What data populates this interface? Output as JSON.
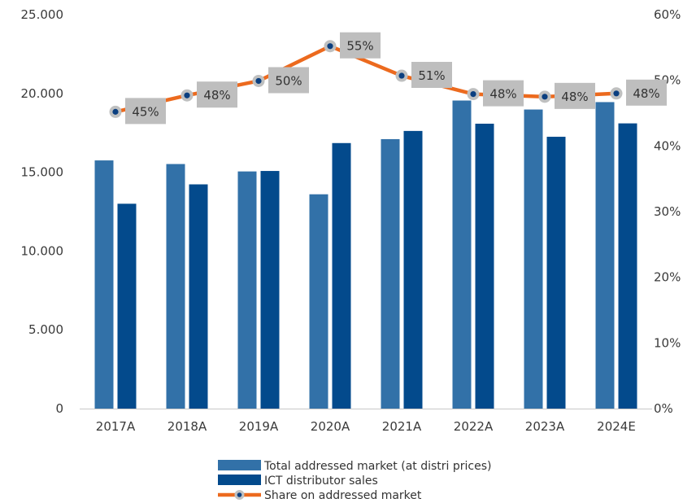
{
  "chart_data": {
    "type": "bar",
    "categories": [
      "2017A",
      "2018A",
      "2019A",
      "2020A",
      "2021A",
      "2022A",
      "2023A",
      "2024E"
    ],
    "series": [
      {
        "name": "Total addressed market (at distri prices)",
        "type": "bar",
        "axis": "left",
        "color": "#3271a8",
        "values": [
          15750,
          15520,
          15050,
          13600,
          17100,
          19550,
          18980,
          19450
        ]
      },
      {
        "name": "ICT distributor sales",
        "type": "bar",
        "axis": "left",
        "color": "#034a8c",
        "values": [
          13000,
          14230,
          15080,
          16850,
          17620,
          18080,
          17250,
          18100
        ]
      },
      {
        "name": "Share on addressed market",
        "type": "line",
        "axis": "right",
        "color": "#ec6a1e",
        "values": [
          45,
          48,
          50,
          55,
          51,
          48,
          48,
          48
        ],
        "plot_values": [
          45.2,
          47.7,
          49.9,
          55.2,
          50.7,
          47.9,
          47.5,
          48.0
        ],
        "labels": [
          "45%",
          "48%",
          "50%",
          "55%",
          "51%",
          "48%",
          "48%",
          "48%"
        ]
      }
    ],
    "y_left": {
      "min": 0,
      "max": 25000,
      "ticks": [
        "0",
        "5.000",
        "10.000",
        "15.000",
        "20.000",
        "25.000"
      ],
      "tick_values": [
        0,
        5000,
        10000,
        15000,
        20000,
        25000
      ]
    },
    "y_right": {
      "min": 0,
      "max": 60,
      "ticks": [
        "0%",
        "10%",
        "20%",
        "30%",
        "40%",
        "50%",
        "60%"
      ],
      "tick_values": [
        0,
        10,
        20,
        30,
        40,
        50,
        60
      ]
    },
    "title": "",
    "xlabel": "",
    "ylabel": "",
    "grid": false,
    "legend_position": "bottom"
  }
}
